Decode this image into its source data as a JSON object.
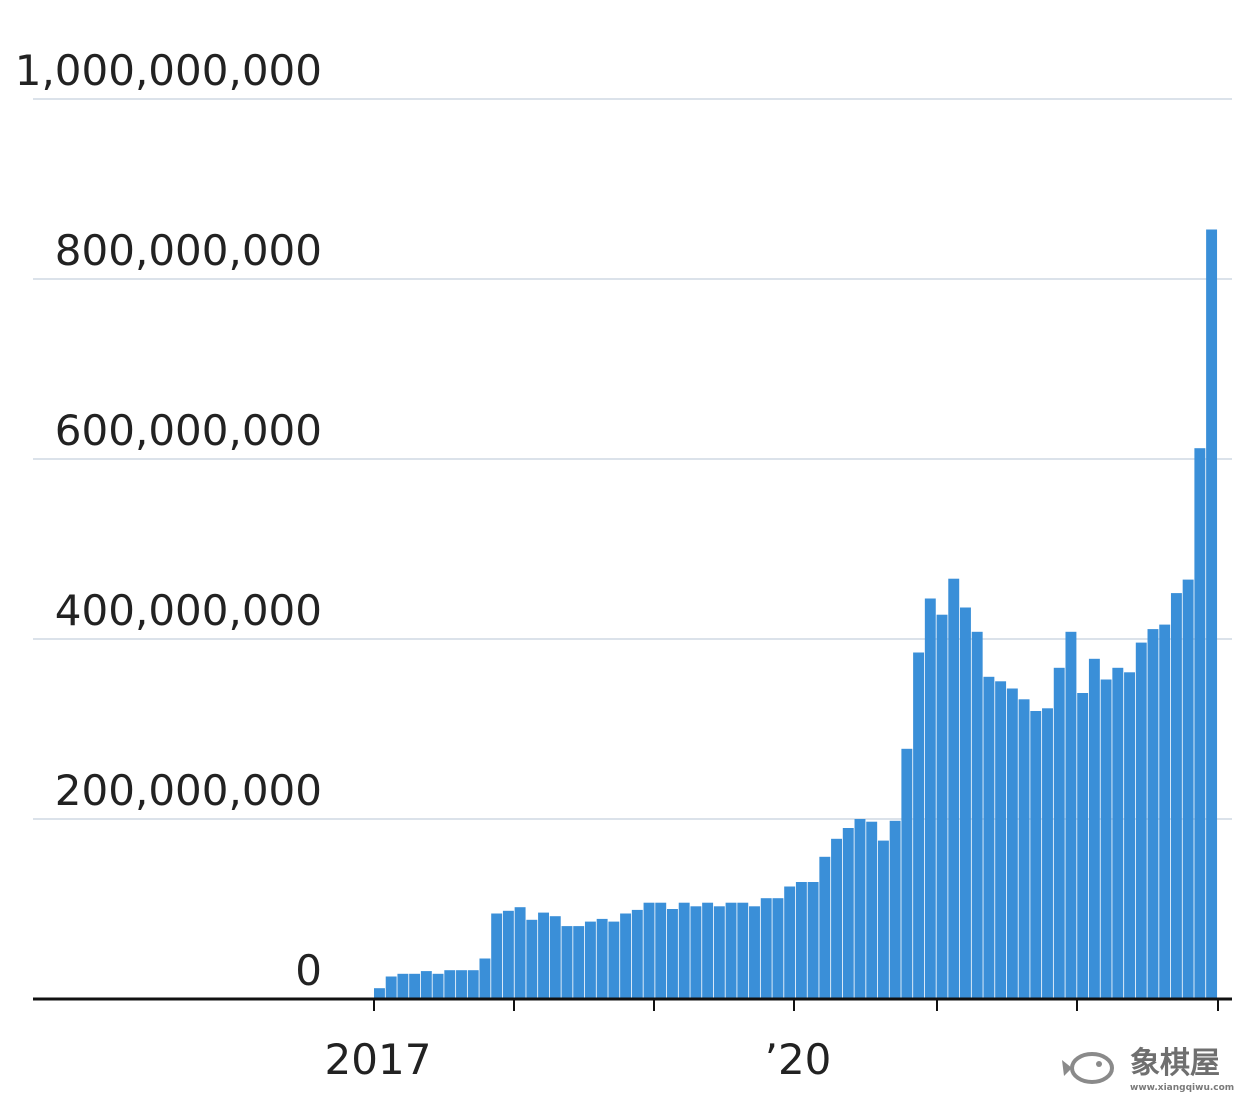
{
  "colors": {
    "bar": "#3a8fd8",
    "grid": "#cfd8e3",
    "axis": "#111111",
    "text": "#222222"
  },
  "chart_data": {
    "type": "bar",
    "title": "",
    "xlabel": "",
    "ylabel": "",
    "ylim": [
      0,
      1000000000
    ],
    "grid": true,
    "legend": "none",
    "y_ticks": [
      {
        "value": 0,
        "label": "0"
      },
      {
        "value": 200000000,
        "label": "200,000,000"
      },
      {
        "value": 400000000,
        "label": "400,000,000"
      },
      {
        "value": 600000000,
        "label": "600,000,000"
      },
      {
        "value": 800000000,
        "label": "800,000,000"
      },
      {
        "value": 1000000000,
        "label": "1,000,000,000"
      }
    ],
    "x_labels": [
      "2017",
      "’20"
    ],
    "values": [
      12000000,
      25000000,
      28000000,
      28000000,
      31000000,
      28000000,
      32000000,
      32000000,
      32000000,
      45000000,
      95000000,
      98000000,
      102000000,
      88000000,
      96000000,
      92000000,
      81000000,
      81000000,
      86000000,
      89000000,
      86000000,
      95000000,
      99000000,
      107000000,
      107000000,
      100000000,
      107000000,
      103000000,
      107000000,
      103000000,
      107000000,
      107000000,
      103000000,
      112000000,
      112000000,
      125000000,
      130000000,
      130000000,
      158000000,
      178000000,
      190000000,
      200000000,
      197000000,
      176000000,
      198000000,
      278000000,
      385000000,
      445000000,
      427000000,
      467000000,
      435000000,
      408000000,
      358000000,
      353000000,
      345000000,
      333000000,
      320000000,
      323000000,
      368000000,
      408000000,
      340000000,
      378000000,
      355000000,
      368000000,
      363000000,
      396000000,
      411000000,
      416000000,
      451000000,
      466000000,
      612000000,
      855000000
    ]
  },
  "watermark": {
    "text": "象棋屋",
    "sub": "www.xiangqiwu.com"
  }
}
